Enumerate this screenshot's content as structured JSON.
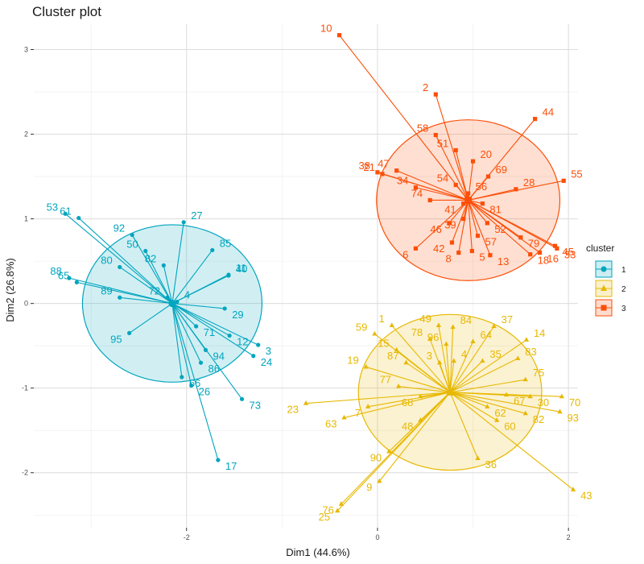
{
  "chart_data": {
    "type": "scatter",
    "title": "Cluster plot",
    "xlabel": "Dim1 (44.6%)",
    "ylabel": "Dim2 (26.8%)",
    "xlim": [
      -3.6,
      2.1
    ],
    "ylim": [
      -2.65,
      3.3
    ],
    "x_ticks": [
      -2,
      0,
      2
    ],
    "y_ticks": [
      -2,
      -1,
      0,
      1,
      2,
      3
    ],
    "x_tick_labels": [
      "-2",
      "0",
      "2"
    ],
    "y_tick_labels": [
      "-2",
      "-1",
      "0",
      "1",
      "2",
      "3"
    ],
    "grid": true,
    "legend": {
      "title": "cluster",
      "position": "right",
      "labels": [
        "1",
        "2",
        "3"
      ]
    },
    "series": [
      {
        "name": "1",
        "color": "#00a5be",
        "marker": "circle",
        "center": [
          -2.15,
          0.0
        ],
        "ellipse": {
          "rx": 0.94,
          "ry": 0.93
        },
        "points": [
          {
            "label": "53",
            "x": -3.27,
            "y": 1.06
          },
          {
            "label": "61",
            "x": -3.13,
            "y": 1.01
          },
          {
            "label": "92",
            "x": -2.57,
            "y": 0.81
          },
          {
            "label": "50",
            "x": -2.43,
            "y": 0.62
          },
          {
            "label": "27",
            "x": -2.03,
            "y": 0.96
          },
          {
            "label": "85",
            "x": -1.73,
            "y": 0.63
          },
          {
            "label": "82",
            "x": -2.24,
            "y": 0.45
          },
          {
            "label": "40",
            "x": -1.56,
            "y": 0.33
          },
          {
            "label": "11",
            "x": -1.56,
            "y": 0.34
          },
          {
            "label": "88",
            "x": -3.23,
            "y": 0.3
          },
          {
            "label": "80",
            "x": -2.7,
            "y": 0.43
          },
          {
            "label": "65",
            "x": -3.15,
            "y": 0.25
          },
          {
            "label": "72",
            "x": -2.2,
            "y": 0.07
          },
          {
            "label": "4",
            "x": -2.1,
            "y": 0.02
          },
          {
            "label": "29",
            "x": -1.6,
            "y": -0.06
          },
          {
            "label": "89",
            "x": -2.7,
            "y": 0.07
          },
          {
            "label": "95",
            "x": -2.6,
            "y": -0.35
          },
          {
            "label": "71",
            "x": -1.9,
            "y": -0.27
          },
          {
            "label": "12",
            "x": -1.55,
            "y": -0.38
          },
          {
            "label": "3",
            "x": -1.25,
            "y": -0.49
          },
          {
            "label": "24",
            "x": -1.3,
            "y": -0.62
          },
          {
            "label": "94",
            "x": -1.8,
            "y": -0.55
          },
          {
            "label": "86",
            "x": -1.85,
            "y": -0.7
          },
          {
            "label": "66",
            "x": -2.05,
            "y": -0.87
          },
          {
            "label": "26",
            "x": -1.95,
            "y": -0.97
          },
          {
            "label": "73",
            "x": -1.42,
            "y": -1.13
          },
          {
            "label": "17",
            "x": -1.67,
            "y": -1.85
          }
        ]
      },
      {
        "name": "2",
        "color": "#e7b800",
        "marker": "triangle",
        "center": [
          0.76,
          -1.05
        ],
        "ellipse": {
          "rx": 0.96,
          "ry": 0.92
        },
        "points": [
          {
            "label": "1",
            "x": 0.15,
            "y": -0.26
          },
          {
            "label": "49",
            "x": 0.64,
            "y": -0.26
          },
          {
            "label": "84",
            "x": 0.79,
            "y": -0.28
          },
          {
            "label": "37",
            "x": 1.22,
            "y": -0.27
          },
          {
            "label": "14",
            "x": 1.56,
            "y": -0.43
          },
          {
            "label": "59",
            "x": -0.03,
            "y": -0.36
          },
          {
            "label": "78",
            "x": 0.55,
            "y": -0.42
          },
          {
            "label": "96",
            "x": 0.72,
            "y": -0.48
          },
          {
            "label": "64",
            "x": 1.0,
            "y": -0.45
          },
          {
            "label": "15",
            "x": 0.2,
            "y": -0.55
          },
          {
            "label": "87",
            "x": 0.3,
            "y": -0.7
          },
          {
            "label": "3",
            "x": 0.65,
            "y": -0.7
          },
          {
            "label": "4",
            "x": 0.8,
            "y": -0.68
          },
          {
            "label": "35",
            "x": 1.1,
            "y": -0.68
          },
          {
            "label": "83",
            "x": 1.47,
            "y": -0.65
          },
          {
            "label": "19",
            "x": -0.12,
            "y": -0.75
          },
          {
            "label": "75",
            "x": 1.55,
            "y": -0.9
          },
          {
            "label": "77",
            "x": 0.22,
            "y": -0.98
          },
          {
            "label": "68",
            "x": 0.45,
            "y": -1.1
          },
          {
            "label": "67",
            "x": 1.35,
            "y": -1.08
          },
          {
            "label": "30",
            "x": 1.6,
            "y": -1.1
          },
          {
            "label": "70",
            "x": 1.93,
            "y": -1.1
          },
          {
            "label": "23",
            "x": -0.75,
            "y": -1.18
          },
          {
            "label": "7",
            "x": -0.1,
            "y": -1.22
          },
          {
            "label": "62",
            "x": 1.15,
            "y": -1.22
          },
          {
            "label": "82",
            "x": 1.55,
            "y": -1.3
          },
          {
            "label": "93",
            "x": 1.91,
            "y": -1.28
          },
          {
            "label": "63",
            "x": -0.35,
            "y": -1.35
          },
          {
            "label": "48",
            "x": 0.45,
            "y": -1.38
          },
          {
            "label": "60",
            "x": 1.25,
            "y": -1.38
          },
          {
            "label": "90",
            "x": 0.12,
            "y": -1.75
          },
          {
            "label": "36",
            "x": 1.05,
            "y": -1.83
          },
          {
            "label": "9",
            "x": 0.02,
            "y": -2.1
          },
          {
            "label": "76",
            "x": -0.38,
            "y": -2.37
          },
          {
            "label": "25",
            "x": -0.42,
            "y": -2.45
          },
          {
            "label": "43",
            "x": 2.05,
            "y": -2.2
          }
        ]
      },
      {
        "name": "3",
        "color": "#fc4e07",
        "marker": "square",
        "center": [
          0.95,
          1.22
        ],
        "ellipse": {
          "rx": 0.96,
          "ry": 0.95
        },
        "points": [
          {
            "label": "10",
            "x": -0.4,
            "y": 3.17
          },
          {
            "label": "2",
            "x": 0.61,
            "y": 2.47
          },
          {
            "label": "44",
            "x": 1.65,
            "y": 2.18
          },
          {
            "label": "58",
            "x": 0.61,
            "y": 1.99
          },
          {
            "label": "51",
            "x": 0.82,
            "y": 1.81
          },
          {
            "label": "20",
            "x": 1.0,
            "y": 1.68
          },
          {
            "label": "69",
            "x": 1.16,
            "y": 1.5
          },
          {
            "label": "38",
            "x": 0.0,
            "y": 1.55
          },
          {
            "label": "47",
            "x": 0.2,
            "y": 1.57
          },
          {
            "label": "21",
            "x": 0.05,
            "y": 1.53
          },
          {
            "label": "34",
            "x": 0.4,
            "y": 1.37
          },
          {
            "label": "54",
            "x": 0.82,
            "y": 1.4
          },
          {
            "label": "56",
            "x": 0.95,
            "y": 1.3
          },
          {
            "label": "55",
            "x": 1.95,
            "y": 1.45
          },
          {
            "label": "74",
            "x": 0.55,
            "y": 1.22
          },
          {
            "label": "41",
            "x": 0.9,
            "y": 1.18
          },
          {
            "label": "81",
            "x": 1.1,
            "y": 1.18
          },
          {
            "label": "28",
            "x": 1.45,
            "y": 1.35
          },
          {
            "label": "46",
            "x": 0.75,
            "y": 0.95
          },
          {
            "label": "39",
            "x": 0.9,
            "y": 1.0
          },
          {
            "label": "52",
            "x": 1.15,
            "y": 0.95
          },
          {
            "label": "6",
            "x": 0.4,
            "y": 0.65
          },
          {
            "label": "42",
            "x": 0.78,
            "y": 0.72
          },
          {
            "label": "57",
            "x": 1.05,
            "y": 0.8
          },
          {
            "label": "79",
            "x": 1.5,
            "y": 0.78
          },
          {
            "label": "45",
            "x": 1.86,
            "y": 0.68
          },
          {
            "label": "8",
            "x": 0.85,
            "y": 0.6
          },
          {
            "label": "5",
            "x": 0.99,
            "y": 0.62
          },
          {
            "label": "13",
            "x": 1.18,
            "y": 0.57
          },
          {
            "label": "18",
            "x": 1.6,
            "y": 0.58
          },
          {
            "label": "16",
            "x": 1.7,
            "y": 0.6
          },
          {
            "label": "33",
            "x": 1.88,
            "y": 0.65
          }
        ]
      }
    ]
  }
}
